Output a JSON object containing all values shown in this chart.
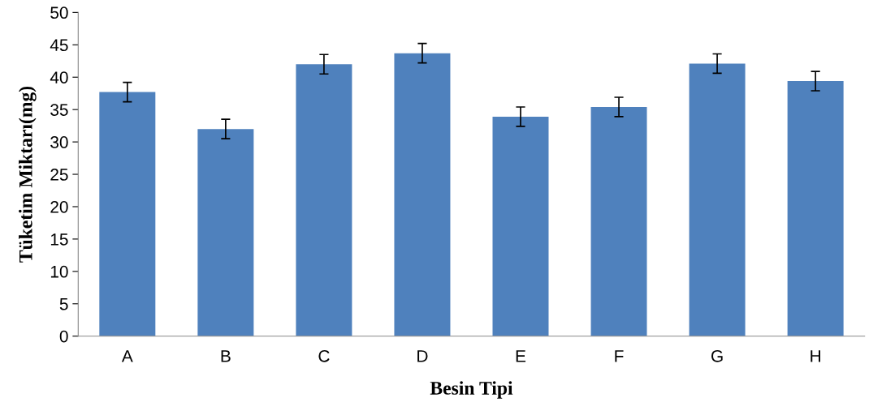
{
  "chart_data": {
    "type": "bar",
    "xlabel": "Besin Tipi",
    "ylabel": "Tüketim Miktarı(mg)",
    "categories": [
      "A",
      "B",
      "C",
      "D",
      "E",
      "F",
      "G",
      "H"
    ],
    "values": [
      37.7,
      32.0,
      42.0,
      43.7,
      33.9,
      35.4,
      42.1,
      39.4
    ],
    "errors": [
      1.5,
      1.5,
      1.5,
      1.5,
      1.5,
      1.5,
      1.5,
      1.5
    ],
    "color": "#4f81bd",
    "ylim": [
      0,
      50
    ],
    "yticks": [
      0,
      5,
      10,
      15,
      20,
      25,
      30,
      35,
      40,
      45,
      50
    ],
    "grid": false
  }
}
